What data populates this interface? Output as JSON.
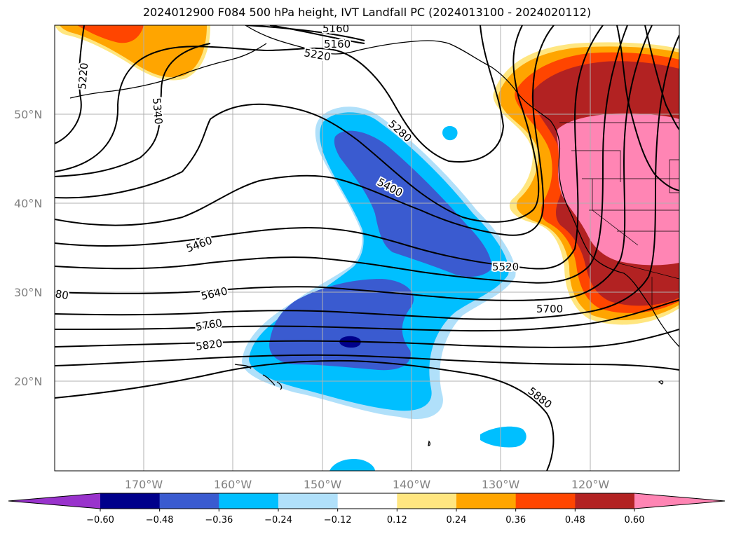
{
  "title": "2024012900 F084 500 hPa height, IVT Landfall PC (2024013100 - 2024020112)",
  "colors": {
    "purple": "#9933cc",
    "navy": "#00008b",
    "royal": "#3a5bd0",
    "sky": "#00bfff",
    "paleblue": "#b0e0fa",
    "white": "#ffffff",
    "paleyellow": "#ffe680",
    "orange": "#ffa500",
    "redorange": "#ff4500",
    "firebrick": "#b22222",
    "pink": "#ff85b4"
  },
  "map": {
    "lat_labels": [
      "50°N",
      "40°N",
      "30°N",
      "20°N"
    ],
    "lon_labels": [
      "170°W",
      "160°W",
      "150°W",
      "140°W",
      "130°W",
      "120°W"
    ],
    "contour_labels": {
      "c5160a": "5160",
      "c5160b": "5160",
      "c5220a": "5220",
      "c5220b": "5220",
      "c5340": "5340",
      "c5280": "5280",
      "c5400": "5400",
      "c5460": "5460",
      "c5520": "5520",
      "c5580": "80",
      "c5640": "5640",
      "c5700": "5700",
      "c5760": "5760",
      "c5820": "5820",
      "c5880": "5880"
    }
  },
  "colorbar": {
    "ticks": [
      "−0.60",
      "−0.48",
      "−0.36",
      "−0.24",
      "−0.12",
      "0.12",
      "0.24",
      "0.36",
      "0.48",
      "0.60"
    ],
    "bins": [
      "purple",
      "navy",
      "royal",
      "sky",
      "paleblue",
      "white",
      "paleyellow",
      "orange",
      "redorange",
      "firebrick",
      "pink"
    ]
  }
}
